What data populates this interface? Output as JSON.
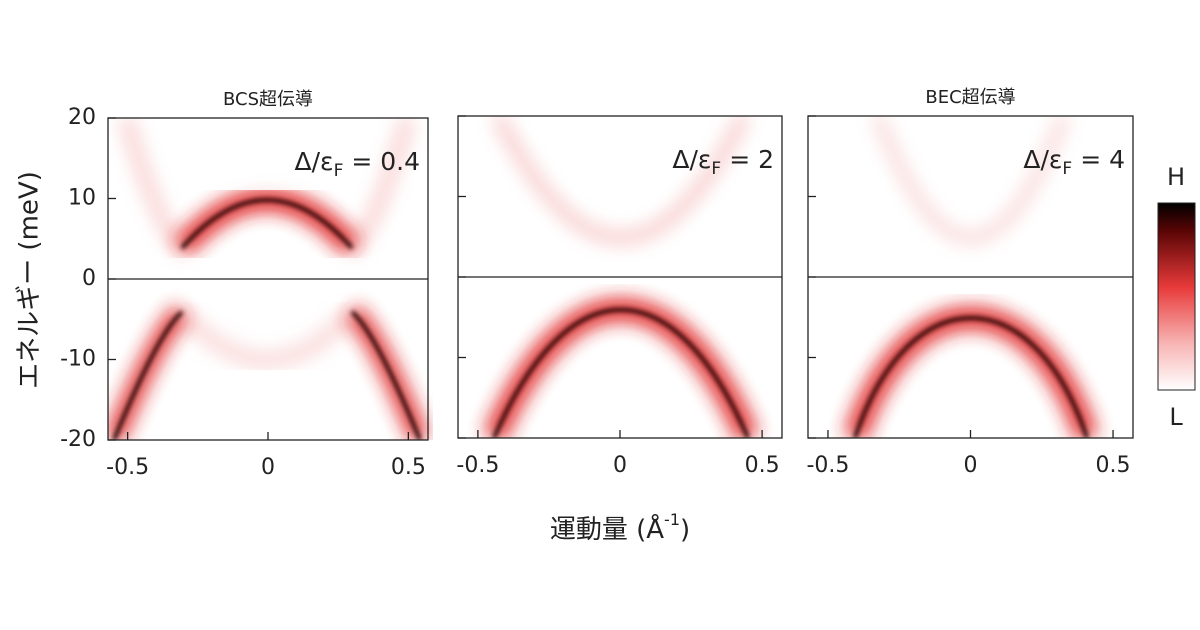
{
  "y_label": "エネルギー (meV)",
  "x_label": {
    "text": "運動量 (Å",
    "superscript": "-1",
    "end": ")"
  },
  "colorbar": {
    "high": "H",
    "low": "L"
  },
  "chart_data": [
    {
      "type": "heatmap",
      "title": "BCS超伝導",
      "annotation": {
        "text": "Δ/ε",
        "subscript": "F",
        "rest": "= 0.4"
      },
      "xlim": [
        -0.57,
        0.57
      ],
      "xticks": [
        -0.5,
        0,
        0.5
      ],
      "ylim": [
        -20,
        20
      ],
      "yticks": [
        -20,
        -10,
        0,
        10,
        20
      ],
      "y_tick_labels": true
    },
    {
      "type": "heatmap",
      "annotation": {
        "text": "Δ/ε",
        "subscript": "F",
        "rest": "= 2"
      },
      "xlim": [
        -0.57,
        0.57
      ],
      "xticks": [
        -0.5,
        0,
        0.5
      ],
      "ylim": [
        -20,
        20
      ],
      "yticks": [
        -20,
        -10,
        0,
        10,
        20
      ],
      "y_tick_labels": false
    },
    {
      "type": "heatmap",
      "title": "BEC超伝導",
      "annotation": {
        "text": "Δ/ε",
        "subscript": "F",
        "rest": "= 4"
      },
      "xlim": [
        -0.57,
        0.57
      ],
      "xticks": [
        -0.5,
        0,
        0.5
      ],
      "ylim": [
        -20,
        20
      ],
      "yticks": [
        -20,
        -10,
        0,
        10,
        20
      ],
      "y_tick_labels": false
    }
  ]
}
